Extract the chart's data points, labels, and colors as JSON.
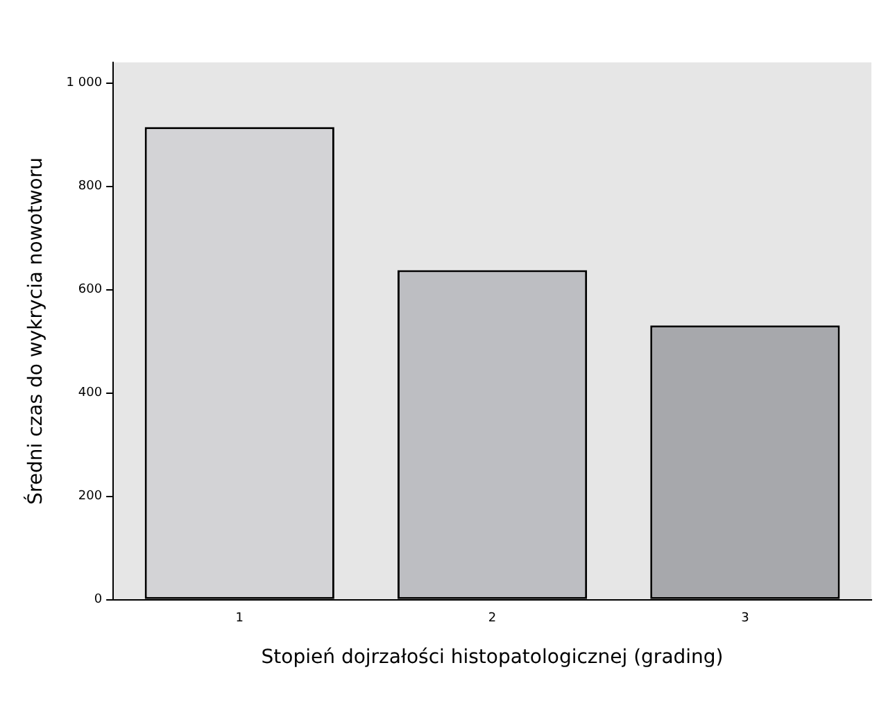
{
  "chart_data": {
    "type": "bar",
    "xlabel": "Stopień dojrzałości histopatologicznej (grading)",
    "ylabel": "Średni czas do wykrycia nowotworu",
    "categories": [
      "1",
      "2",
      "3"
    ],
    "values": [
      915,
      638,
      531
    ],
    "colors": [
      "#d3d3d6",
      "#bdbec2",
      "#a7a8ac"
    ],
    "ylim": [
      0,
      1040
    ],
    "yticks": [
      0,
      200,
      400,
      600,
      800,
      {
        "value": 1000,
        "label": "1 000"
      }
    ],
    "grid": false,
    "legend": false
  }
}
